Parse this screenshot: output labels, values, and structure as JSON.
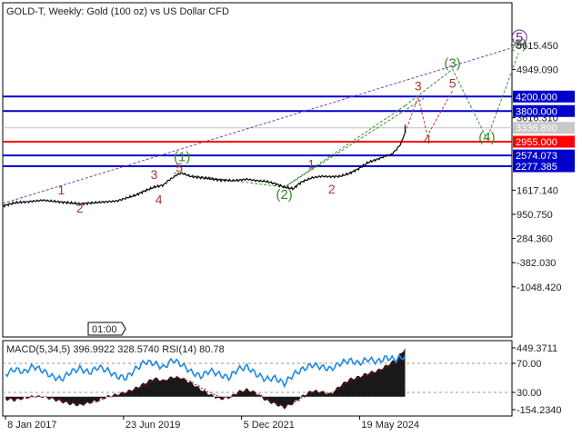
{
  "window": {
    "title": "GOLD-T, Weekly:  Gold (100 oz) vs US Dollar CFD",
    "time_badge": "01:00"
  },
  "chart_data": [
    {
      "type": "line",
      "id": "price",
      "title": "GOLD-T, Weekly:  Gold (100 oz) vs US Dollar CFD",
      "ylim": [
        -1300,
        5900
      ],
      "y_ticks": [
        "5615.450",
        "4949.090",
        "3616.310",
        "1617.140",
        "950.750",
        "284.360",
        "-382.030",
        "-1048.420"
      ],
      "y_tick_values": [
        5615.45,
        4949.09,
        3616.31,
        1617.14,
        950.75,
        284.36,
        -382.03,
        -1048.42
      ],
      "x_ticks": [
        "8 Jan 2017",
        "23 Jun 2019",
        "5 Dec 2021",
        "19 May 2024"
      ],
      "x_tick_positions": [
        0,
        127,
        254,
        381
      ],
      "x_range": [
        -3,
        545
      ],
      "series": [
        {
          "name": "",
          "color": "#000000",
          "x": [
            -3,
            10,
            25,
            40,
            60,
            80,
            100,
            120,
            140,
            150,
            160,
            170,
            175,
            180,
            185,
            190,
            200,
            215,
            230,
            245,
            260,
            270,
            280,
            290,
            300,
            310,
            315,
            320,
            330,
            340,
            350,
            360,
            370,
            380,
            390,
            400,
            405,
            410,
            415,
            420,
            425,
            428,
            430
          ],
          "y": [
            1180,
            1270,
            1300,
            1340,
            1290,
            1240,
            1280,
            1320,
            1480,
            1600,
            1700,
            1760,
            1880,
            1960,
            2050,
            2090,
            1990,
            1950,
            1900,
            1880,
            1920,
            1880,
            1860,
            1800,
            1700,
            1660,
            1780,
            1860,
            1960,
            2000,
            1990,
            2000,
            2080,
            2210,
            2380,
            2470,
            2520,
            2570,
            2600,
            2720,
            2880,
            3080,
            3210
          ]
        }
      ],
      "levels": [
        {
          "label": "4200.000",
          "value": 4200.0,
          "color": "#0000cc"
        },
        {
          "label": "3800.000",
          "value": 3800.0,
          "color": "#0000cc"
        },
        {
          "label": "3336.890",
          "value": 3336.89,
          "color": "#c0c0c0"
        },
        {
          "label": "2955.000",
          "value": 2955.0,
          "color": "#ff0000"
        },
        {
          "label": "2574.073",
          "value": 2574.073,
          "color": "#0000cc"
        },
        {
          "label": "2277.385",
          "value": 2277.385,
          "color": "#0000cc"
        }
      ],
      "wave_labels": [
        {
          "text": "1",
          "x": 60,
          "y": 1500,
          "style": "red"
        },
        {
          "text": "2",
          "x": 80,
          "y": 1000,
          "style": "red"
        },
        {
          "text": "3",
          "x": 160,
          "y": 1930,
          "style": "red"
        },
        {
          "text": "4",
          "x": 165,
          "y": 1240,
          "style": "red"
        },
        {
          "text": "5",
          "x": 187,
          "y": 2120,
          "style": "red"
        },
        {
          "text": "(1)",
          "x": 190,
          "y": 2420,
          "style": "green"
        },
        {
          "text": "(2)",
          "x": 300,
          "y": 1380,
          "style": "green"
        },
        {
          "text": "1",
          "x": 329,
          "y": 2220,
          "style": "red"
        },
        {
          "text": "2",
          "x": 351,
          "y": 1530,
          "style": "red"
        },
        {
          "text": "3",
          "x": 444,
          "y": 4370,
          "style": "red"
        },
        {
          "text": "4",
          "x": 454,
          "y": 2900,
          "style": "red"
        },
        {
          "text": "5",
          "x": 481,
          "y": 4440,
          "style": "red"
        },
        {
          "text": "(3)",
          "x": 481,
          "y": 5000,
          "style": "green"
        },
        {
          "text": "(4)",
          "x": 518,
          "y": 2955,
          "style": "green"
        },
        {
          "text": "(5)",
          "x": 552,
          "y": 5520,
          "style": "green"
        },
        {
          "text": "5",
          "x": 553,
          "y": 5710,
          "style": "purple"
        }
      ],
      "trendlines": [
        {
          "color": "#7b3fb0",
          "x": [
            -3,
            560
          ],
          "y": [
            1250,
            5660
          ]
        },
        {
          "color": "#3a8a2a",
          "x": [
            181,
            300,
            430
          ],
          "y": [
            2090,
            1700,
            3950
          ]
        },
        {
          "color": "#3a8a2a",
          "x": [
            300,
            450
          ],
          "y": [
            1700,
            4150
          ]
        },
        {
          "color": "#3a8a2a",
          "x": [
            430,
            481,
            518,
            552
          ],
          "y": [
            3950,
            4950,
            3030,
            5400
          ]
        },
        {
          "color": "#cc3333",
          "x": [
            430,
            444,
            454,
            481
          ],
          "y": [
            3200,
            4200,
            3120,
            4360
          ]
        }
      ]
    },
    {
      "type": "bar",
      "id": "indicators",
      "title": "MACD(5,34,5) 396.9922 328.5740 RSI(14) 80.78",
      "y_ticks": [
        "449.3711",
        "70.00",
        "30.00",
        "-154.2340"
      ],
      "reference_lines": [
        70,
        30
      ],
      "rsi": {
        "color": "#1e88e5",
        "x": [
          0,
          10,
          20,
          30,
          40,
          50,
          60,
          70,
          80,
          90,
          100,
          110,
          120,
          130,
          140,
          150,
          160,
          170,
          180,
          190,
          200,
          210,
          220,
          230,
          240,
          250,
          260,
          270,
          280,
          290,
          300,
          310,
          320,
          330,
          340,
          350,
          360,
          370,
          380,
          390,
          400,
          410,
          420,
          430
        ],
        "values": [
          55,
          62,
          58,
          66,
          60,
          52,
          48,
          58,
          63,
          57,
          65,
          60,
          52,
          50,
          62,
          72,
          70,
          64,
          75,
          68,
          58,
          52,
          60,
          55,
          50,
          62,
          65,
          55,
          48,
          50,
          42,
          55,
          62,
          68,
          65,
          62,
          70,
          74,
          70,
          76,
          72,
          78,
          75,
          80
        ]
      },
      "macd": {
        "color": "#000000",
        "x": [
          0,
          10,
          20,
          30,
          40,
          50,
          60,
          70,
          80,
          90,
          100,
          110,
          120,
          130,
          140,
          150,
          160,
          170,
          180,
          190,
          200,
          210,
          220,
          230,
          240,
          250,
          260,
          270,
          280,
          290,
          300,
          310,
          320,
          330,
          340,
          350,
          360,
          370,
          380,
          390,
          400,
          410,
          420,
          430
        ],
        "values": [
          -20,
          -30,
          -10,
          5,
          0,
          -20,
          -40,
          -60,
          -70,
          -50,
          -30,
          5,
          20,
          40,
          70,
          110,
          150,
          130,
          160,
          150,
          110,
          60,
          20,
          -20,
          -10,
          40,
          60,
          30,
          -30,
          -60,
          -90,
          -50,
          10,
          50,
          40,
          20,
          90,
          140,
          160,
          190,
          210,
          250,
          300,
          390
        ]
      },
      "signal": {
        "color": "#cc0000",
        "x": [
          0,
          10,
          20,
          30,
          40,
          50,
          60,
          70,
          80,
          90,
          100,
          110,
          120,
          130,
          140,
          150,
          160,
          170,
          180,
          190,
          200,
          210,
          220,
          230,
          240,
          250,
          260,
          270,
          280,
          290,
          300,
          310,
          320,
          330,
          340,
          350,
          360,
          370,
          380,
          390,
          400,
          410,
          420,
          430
        ],
        "values": [
          -10,
          -20,
          -15,
          0,
          0,
          -10,
          -30,
          -50,
          -60,
          -50,
          -35,
          -5,
          15,
          35,
          60,
          95,
          130,
          130,
          150,
          150,
          120,
          75,
          35,
          0,
          -10,
          25,
          50,
          35,
          -15,
          -50,
          -75,
          -55,
          -5,
          35,
          40,
          25,
          75,
          125,
          150,
          175,
          200,
          235,
          280,
          330
        ]
      },
      "macd_range": [
        -154.234,
        449.3711
      ]
    }
  ]
}
